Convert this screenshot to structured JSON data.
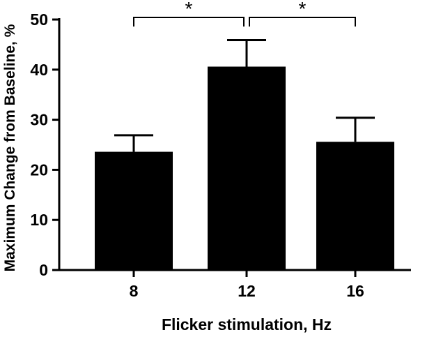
{
  "chart_data": {
    "type": "bar",
    "title": "",
    "xlabel": "Flicker stimulation, Hz",
    "ylabel": "Maximum Change from Baseline, %",
    "categories": [
      "8",
      "12",
      "16"
    ],
    "values": [
      23.6,
      40.6,
      25.6
    ],
    "error_upper": [
      3.3,
      5.3,
      4.8
    ],
    "ylim": [
      0,
      50
    ],
    "yticks": [
      "0",
      "10",
      "20",
      "30",
      "40",
      "50"
    ],
    "grid": false,
    "legend": "none",
    "bar_color": "#000000",
    "significance": [
      {
        "from": "8",
        "to": "12",
        "label": "*"
      },
      {
        "from": "12",
        "to": "16",
        "label": "*"
      }
    ]
  }
}
